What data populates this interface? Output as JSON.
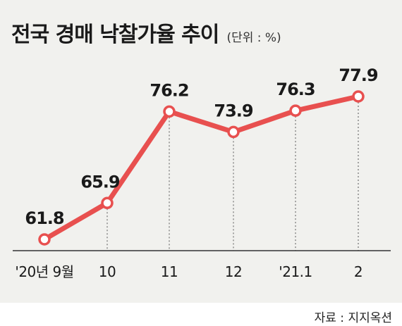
{
  "title": "전국 경매 낙찰가율 추이",
  "unit": "(단위 : %)",
  "source": "자료 : 지지옥션",
  "colors": {
    "line": "#e8504f",
    "background": "#f1f1ee",
    "text": "#1a1a1a"
  },
  "chart_data": {
    "type": "line",
    "categories": [
      "'20년 9월",
      "10",
      "11",
      "12",
      "'21.1",
      "2"
    ],
    "series": [
      {
        "values": [
          61.8,
          65.9,
          76.2,
          73.9,
          76.3,
          77.9
        ]
      }
    ],
    "grid": false,
    "vertical_drop_lines": true
  }
}
